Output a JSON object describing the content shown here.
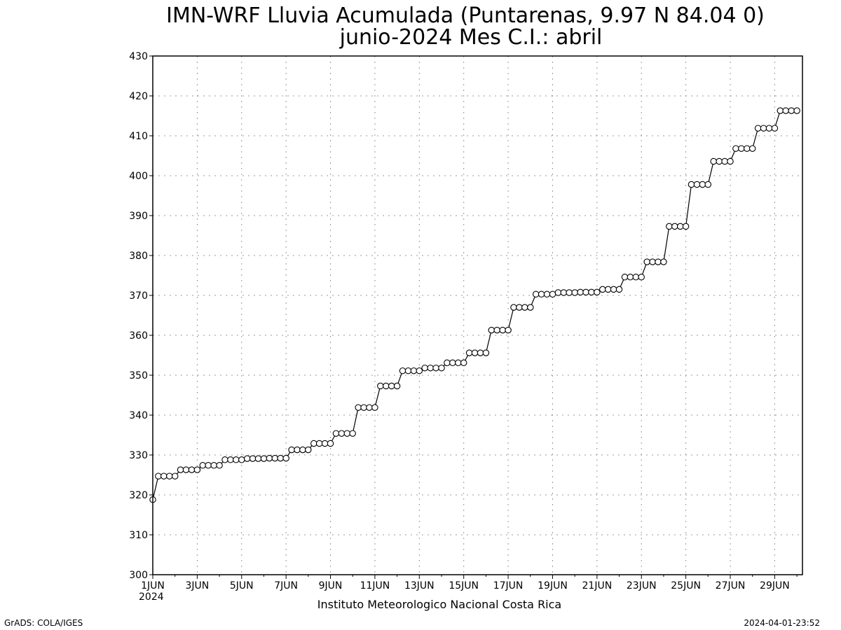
{
  "chart_data": {
    "type": "line",
    "title": "IMN-WRF  Lluvia Acumulada (Puntarenas, 9.97  N 84.04  0)",
    "subtitle": "junio-2024 Mes C.I.: abril",
    "xlabel": "",
    "ylabel": "",
    "ylim": [
      300,
      430
    ],
    "y_ticks": [
      300,
      310,
      320,
      330,
      340,
      350,
      360,
      370,
      380,
      390,
      400,
      410,
      420,
      430
    ],
    "x_range": [
      "2024-06-01 00:00",
      "2024-06-30 06:00"
    ],
    "x_step_hours": 6,
    "x_tick_labels": [
      "1JUN",
      "3JUN",
      "5JUN",
      "7JUN",
      "9JUN",
      "11JUN",
      "13JUN",
      "15JUN",
      "17JUN",
      "19JUN",
      "21JUN",
      "23JUN",
      "25JUN",
      "27JUN",
      "29JUN"
    ],
    "x_year_label": "2024",
    "grid": true,
    "marker": "open-circle",
    "series": [
      {
        "values": [
          318.8,
          324.7,
          324.7,
          324.7,
          324.7,
          326.3,
          326.3,
          326.3,
          326.3,
          327.4,
          327.4,
          327.4,
          327.4,
          328.8,
          328.8,
          328.8,
          328.8,
          329.1,
          329.1,
          329.1,
          329.1,
          329.2,
          329.2,
          329.2,
          329.2,
          331.3,
          331.3,
          331.3,
          331.3,
          332.9,
          332.9,
          332.9,
          332.9,
          335.4,
          335.4,
          335.4,
          335.4,
          341.9,
          341.9,
          341.9,
          341.9,
          347.3,
          347.3,
          347.3,
          347.3,
          351.1,
          351.1,
          351.1,
          351.1,
          351.8,
          351.8,
          351.8,
          351.8,
          353.1,
          353.1,
          353.1,
          353.1,
          355.6,
          355.6,
          355.6,
          355.6,
          361.3,
          361.3,
          361.3,
          361.3,
          367.0,
          367.0,
          367.0,
          367.0,
          370.3,
          370.3,
          370.3,
          370.3,
          370.7,
          370.7,
          370.7,
          370.7,
          370.8,
          370.8,
          370.8,
          370.8,
          371.5,
          371.5,
          371.5,
          371.5,
          374.6,
          374.6,
          374.6,
          374.6,
          378.4,
          378.4,
          378.4,
          378.4,
          387.3,
          387.3,
          387.3,
          387.3,
          397.8,
          397.8,
          397.8,
          397.8,
          403.6,
          403.6,
          403.6,
          403.6,
          406.8,
          406.8,
          406.8,
          406.8,
          411.9,
          411.9,
          411.9,
          411.9,
          416.3,
          416.3,
          416.3,
          416.3
        ]
      }
    ]
  },
  "footer": {
    "institution": "Instituto Meteorologico Nacional Costa Rica",
    "software": "GrADS: COLA/IGES",
    "timestamp": "2024-04-01-23:52"
  }
}
